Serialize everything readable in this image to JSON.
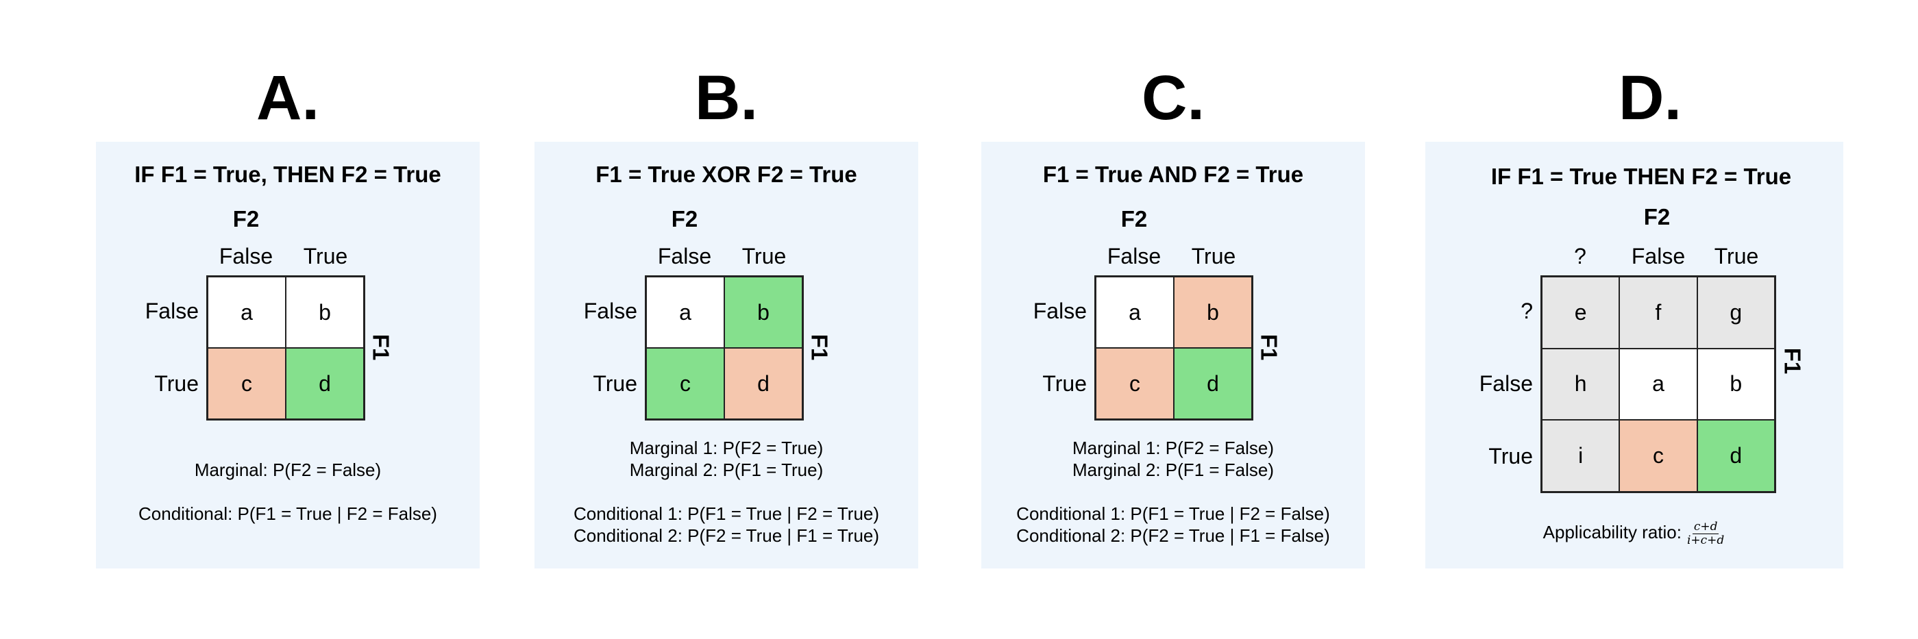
{
  "panels": [
    {
      "letter": "A.",
      "title": "IF F1 = True, THEN F2 = True",
      "col_axis": "F2",
      "row_axis": "F1",
      "col_headers": [
        "False",
        "True"
      ],
      "row_headers": [
        "False",
        "True"
      ],
      "cells": [
        [
          {
            "label": "a",
            "color": "#ffffff"
          },
          {
            "label": "b",
            "color": "#ffffff"
          }
        ],
        [
          {
            "label": "c",
            "color": "#f5c7ae"
          },
          {
            "label": "d",
            "color": "#85e08d"
          }
        ]
      ],
      "notes": [
        "Marginal: P(F2 = False)",
        "Conditional: P(F1 = True | F2 = False)"
      ]
    },
    {
      "letter": "B.",
      "title": "F1 = True XOR F2 = True",
      "col_axis": "F2",
      "row_axis": "F1",
      "col_headers": [
        "False",
        "True"
      ],
      "row_headers": [
        "False",
        "True"
      ],
      "cells": [
        [
          {
            "label": "a",
            "color": "#ffffff"
          },
          {
            "label": "b",
            "color": "#85e08d"
          }
        ],
        [
          {
            "label": "c",
            "color": "#85e08d"
          },
          {
            "label": "d",
            "color": "#f5c7ae"
          }
        ]
      ],
      "notes": [
        "Marginal 1: P(F2 = True)",
        "Marginal 2: P(F1 = True)",
        "Conditional 1: P(F1 = True | F2 = True)",
        "Conditional 2: P(F2 = True | F1 = True)"
      ]
    },
    {
      "letter": "C.",
      "title": "F1 = True AND F2 = True",
      "col_axis": "F2",
      "row_axis": "F1",
      "col_headers": [
        "False",
        "True"
      ],
      "row_headers": [
        "False",
        "True"
      ],
      "cells": [
        [
          {
            "label": "a",
            "color": "#ffffff"
          },
          {
            "label": "b",
            "color": "#f5c7ae"
          }
        ],
        [
          {
            "label": "c",
            "color": "#f5c7ae"
          },
          {
            "label": "d",
            "color": "#85e08d"
          }
        ]
      ],
      "notes": [
        "Marginal 1: P(F2 = False)",
        "Marginal 2: P(F1 = False)",
        "Conditional 1: P(F1 = True | F2 = False)",
        "Conditional 2: P(F2 = True | F1 = False)"
      ]
    },
    {
      "letter": "D.",
      "title": "IF F1 = True THEN F2 = True",
      "col_axis": "F2",
      "row_axis": "F1",
      "col_headers": [
        "?",
        "False",
        "True"
      ],
      "row_headers": [
        "?",
        "False",
        "True"
      ],
      "cells": [
        [
          {
            "label": "e",
            "color": "#e7e7e7"
          },
          {
            "label": "f",
            "color": "#e7e7e7"
          },
          {
            "label": "g",
            "color": "#e7e7e7"
          }
        ],
        [
          {
            "label": "h",
            "color": "#e7e7e7"
          },
          {
            "label": "a",
            "color": "#ffffff"
          },
          {
            "label": "b",
            "color": "#ffffff"
          }
        ],
        [
          {
            "label": "i",
            "color": "#e7e7e7"
          },
          {
            "label": "c",
            "color": "#f5c7ae"
          },
          {
            "label": "d",
            "color": "#85e08d"
          }
        ]
      ],
      "ratio_label": "Applicability ratio:",
      "ratio_numerator": "c+d",
      "ratio_denominator": "i+c+d"
    }
  ]
}
